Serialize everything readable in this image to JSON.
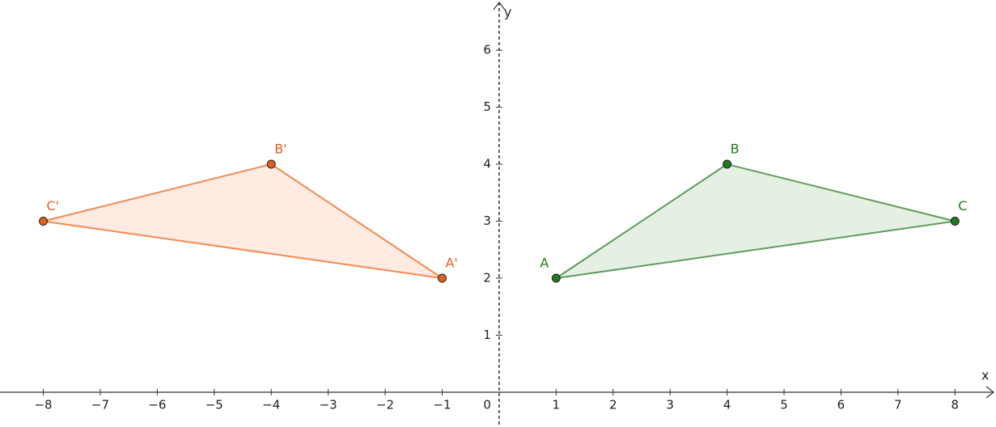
{
  "chart_data": {
    "type": "polygon",
    "x_label": "x",
    "y_label": "y",
    "xlim": [
      -8.76,
      8.72
    ],
    "ylim": [
      -0.61,
      6.88
    ],
    "xticks": [
      {
        "value": -8,
        "label": "−8"
      },
      {
        "value": -7,
        "label": "−7"
      },
      {
        "value": -6,
        "label": "−6"
      },
      {
        "value": -5,
        "label": "−5"
      },
      {
        "value": -4,
        "label": "−4"
      },
      {
        "value": -3,
        "label": "−3"
      },
      {
        "value": -2,
        "label": "−2"
      },
      {
        "value": -1,
        "label": "−1"
      },
      0,
      1,
      2,
      3,
      4,
      5,
      6,
      7,
      8
    ],
    "yticks": [
      1,
      2,
      3,
      4,
      5,
      6
    ],
    "series": [
      {
        "color": "#1e7b1e",
        "line_color": "#5e9e5e",
        "fill": "rgba(120,180,120,0.2)",
        "labels": [
          "A",
          "B",
          "C"
        ],
        "x": [
          1,
          4,
          8
        ],
        "y": [
          2,
          4,
          3
        ]
      },
      {
        "color": "#e2601b",
        "line_color": "#f28a50",
        "fill": "rgba(255,190,160,0.3)",
        "labels": [
          "A'",
          "B'",
          "C'"
        ],
        "x": [
          -1,
          -4,
          -8
        ],
        "y": [
          2,
          4,
          3
        ]
      }
    ]
  }
}
